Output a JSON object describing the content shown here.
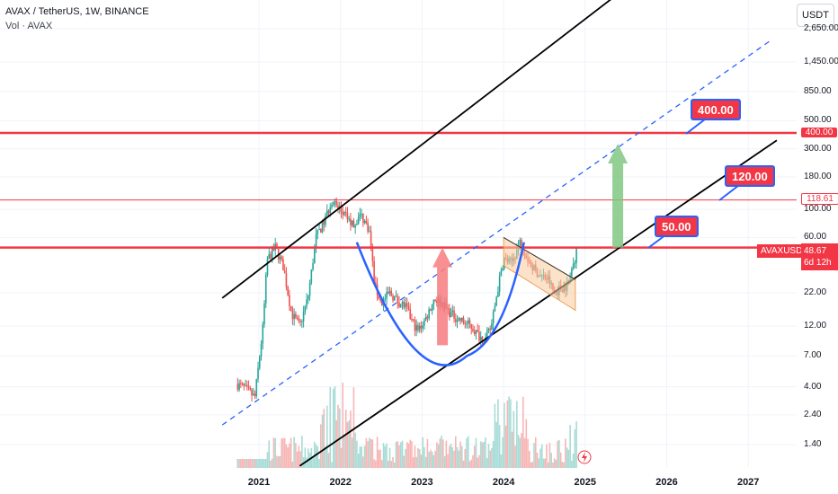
{
  "header": {
    "symbol_line": "AVAX / TetherUS, 1W, BINANCE",
    "volume_line": "Vol · AVAX"
  },
  "currency_button": "USDT",
  "y_axis": {
    "scale": "log",
    "range": [
      1.1,
      2600
    ],
    "ticks": [
      "2,650.00",
      "1,450.00",
      "850.00",
      "500.00",
      "300.00",
      "180.00",
      "100.00",
      "60.00",
      "22.00",
      "12.00",
      "7.00",
      "4.00",
      "2.40",
      "1.40"
    ],
    "tick_values": [
      2650,
      1450,
      850,
      500,
      300,
      180,
      100,
      60,
      22,
      12,
      7,
      4,
      2.4,
      1.4
    ]
  },
  "x_axis": {
    "ticks": [
      "2021",
      "2022",
      "2023",
      "2024",
      "2025",
      "2026",
      "2027"
    ],
    "tick_values": [
      2021,
      2022,
      2023,
      2024,
      2025,
      2026,
      2027
    ]
  },
  "price_scale_labels": {
    "level_400": "400.00",
    "level_118": "118.61",
    "symbol": "AVAXUSDT",
    "last_price": "48.67",
    "countdown": "6d 12h"
  },
  "callouts": {
    "c400": "400.00",
    "c120": "120.00",
    "c50": "50.00"
  },
  "colors": {
    "up": "#26a69a",
    "down": "#ef5350",
    "resistance": "#f23645",
    "channel": "#000000",
    "midline": "#2962ff",
    "cup": "#2962ff",
    "arrow_up_red": "#f77c80",
    "arrow_up_green": "#81c784",
    "flag": "#f9cb9c"
  },
  "chart_data": {
    "type": "candlestick",
    "series": [
      {
        "name": "AVAXUSDT",
        "interval": "1W"
      }
    ],
    "price_path": [
      [
        2020.72,
        4.2
      ],
      [
        2020.8,
        4.0
      ],
      [
        2020.95,
        3.3
      ],
      [
        2021.05,
        12
      ],
      [
        2021.1,
        40
      ],
      [
        2021.2,
        50
      ],
      [
        2021.3,
        35
      ],
      [
        2021.4,
        15
      ],
      [
        2021.5,
        12
      ],
      [
        2021.6,
        20
      ],
      [
        2021.7,
        60
      ],
      [
        2021.8,
        80
      ],
      [
        2021.9,
        120
      ],
      [
        2021.95,
        105
      ],
      [
        2022.05,
        90
      ],
      [
        2022.15,
        75
      ],
      [
        2022.25,
        90
      ],
      [
        2022.35,
        70
      ],
      [
        2022.42,
        25
      ],
      [
        2022.5,
        18
      ],
      [
        2022.6,
        22
      ],
      [
        2022.7,
        19
      ],
      [
        2022.8,
        17
      ],
      [
        2022.88,
        13
      ],
      [
        2022.95,
        11
      ],
      [
        2023.05,
        14
      ],
      [
        2023.15,
        20
      ],
      [
        2023.25,
        18
      ],
      [
        2023.35,
        15
      ],
      [
        2023.5,
        13
      ],
      [
        2023.6,
        12
      ],
      [
        2023.7,
        10
      ],
      [
        2023.78,
        9.5
      ],
      [
        2023.85,
        12
      ],
      [
        2023.92,
        22
      ],
      [
        2024.0,
        40
      ],
      [
        2024.1,
        38
      ],
      [
        2024.2,
        55
      ],
      [
        2024.25,
        48
      ],
      [
        2024.35,
        35
      ],
      [
        2024.45,
        30
      ],
      [
        2024.55,
        28
      ],
      [
        2024.62,
        22
      ],
      [
        2024.7,
        24
      ],
      [
        2024.78,
        25
      ],
      [
        2024.85,
        35
      ],
      [
        2024.9,
        48.67
      ]
    ],
    "last_price": 48.67,
    "horizontal_levels": [
      400,
      118.61,
      50
    ],
    "targets": [
      400,
      120,
      50
    ],
    "ascending_channel": {
      "upper": [
        [
          2020.55,
          20
        ],
        [
          2025.7,
          7000
        ]
      ],
      "lower": [
        [
          2021.5,
          0.95
        ],
        [
          2027.35,
          350
        ]
      ],
      "midline": [
        [
          2020.55,
          2.0
        ],
        [
          2027.3,
          2200
        ]
      ]
    }
  }
}
